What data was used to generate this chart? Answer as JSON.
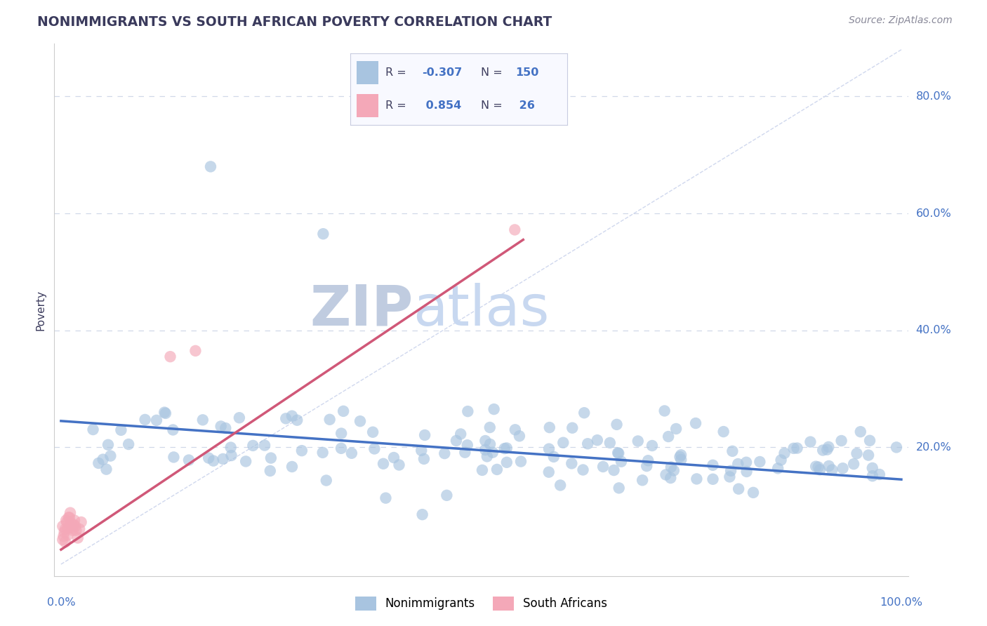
{
  "title": "NONIMMIGRANTS VS SOUTH AFRICAN POVERTY CORRELATION CHART",
  "source_text": "Source: ZipAtlas.com",
  "ylabel": "Poverty",
  "blue_R": -0.307,
  "blue_N": 150,
  "pink_R": 0.854,
  "pink_N": 26,
  "blue_color": "#a8c4e0",
  "blue_line_color": "#4472c4",
  "pink_color": "#f4a8b8",
  "pink_line_color": "#d05878",
  "background_color": "#ffffff",
  "grid_color": "#d0d8e8",
  "watermark_zip_color": "#c0cce0",
  "watermark_atlas_color": "#c8d8f0",
  "title_color": "#3a3a5c",
  "source_color": "#888898",
  "axis_label_color": "#4472c4",
  "ref_line_color": "#d0d8ee",
  "legend_text_color": "#404060",
  "legend_value_color": "#4472c4",
  "blue_line_start_x": 0.0,
  "blue_line_end_x": 1.0,
  "blue_line_start_y": 0.245,
  "blue_line_end_y": 0.145,
  "pink_line_start_x": 0.0,
  "pink_line_end_x": 0.55,
  "pink_line_start_y": 0.025,
  "pink_line_end_y": 0.555,
  "xlim_min": 0.0,
  "xlim_max": 1.0,
  "ylim_min": 0.0,
  "ylim_max": 0.88,
  "ytick_positions": [
    0.2,
    0.4,
    0.6,
    0.8
  ],
  "ytick_labels": [
    "20.0%",
    "40.0%",
    "60.0%",
    "80.0%"
  ],
  "xtick_positions": [
    0.0,
    1.0
  ],
  "xtick_labels": [
    "0.0%",
    "100.0%"
  ]
}
